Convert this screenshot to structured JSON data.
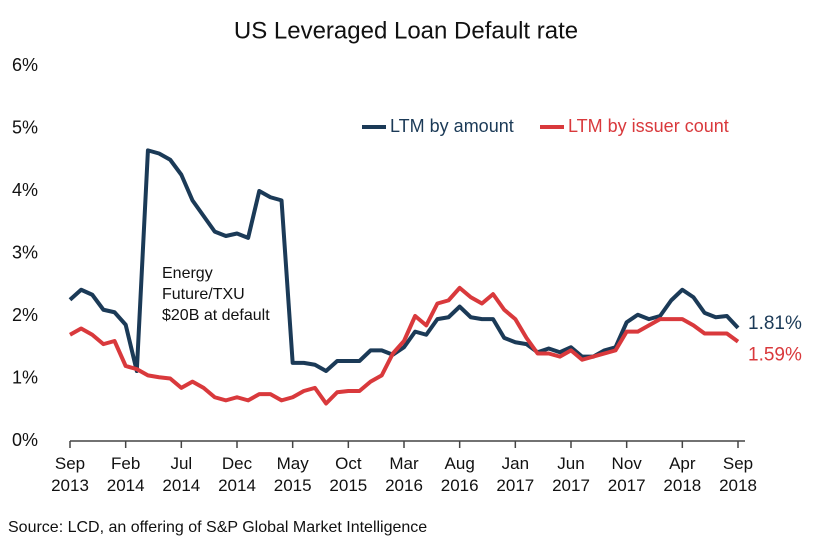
{
  "chart_data": {
    "type": "line",
    "title": "US Leveraged Loan Default rate",
    "source": "Source: LCD, an offering of S&P Global Market Intelligence",
    "annotation": [
      "Energy",
      "Future/TXU",
      "$20B at default"
    ],
    "categories": [
      "Sep 2013",
      null,
      null,
      null,
      null,
      "Feb 2014",
      null,
      null,
      null,
      null,
      "Jul 2014",
      null,
      null,
      null,
      null,
      "Dec 2014",
      null,
      null,
      null,
      null,
      "May 2015",
      null,
      null,
      null,
      null,
      "Oct 2015",
      null,
      null,
      null,
      null,
      "Mar 2016",
      null,
      null,
      null,
      null,
      "Aug 2016",
      null,
      null,
      null,
      null,
      "Jan 2017",
      null,
      null,
      null,
      null,
      "Jun 2017",
      null,
      null,
      null,
      null,
      "Nov 2017",
      null,
      null,
      null,
      null,
      "Apr 2018",
      null,
      null,
      null,
      null,
      "Sep 2018"
    ],
    "ylim": [
      0,
      6
    ],
    "yticks": [
      {
        "value": 0,
        "label": "0%"
      },
      {
        "value": 1,
        "label": "1%"
      },
      {
        "value": 2,
        "label": "2%"
      },
      {
        "value": 3,
        "label": "3%"
      },
      {
        "value": 4,
        "label": "4%"
      },
      {
        "value": 5,
        "label": "5%"
      },
      {
        "value": 6,
        "label": "6%"
      }
    ],
    "legend": "top-right",
    "series": [
      {
        "name": "LTM by amount",
        "color": "#1b3a57",
        "values": [
          2.26,
          2.42,
          2.34,
          2.1,
          2.06,
          1.86,
          1.12,
          4.65,
          4.6,
          4.5,
          4.26,
          3.85,
          3.6,
          3.35,
          3.28,
          3.32,
          3.25,
          4.0,
          3.9,
          3.85,
          1.25,
          1.25,
          1.22,
          1.12,
          1.28,
          1.28,
          1.28,
          1.45,
          1.45,
          1.38,
          1.5,
          1.75,
          1.7,
          1.95,
          1.98,
          2.15,
          1.98,
          1.95,
          1.95,
          1.65,
          1.58,
          1.55,
          1.42,
          1.48,
          1.42,
          1.5,
          1.35,
          1.35,
          1.45,
          1.5,
          1.9,
          2.02,
          1.95,
          2.0,
          2.25,
          2.42,
          2.3,
          2.05,
          1.98,
          2.0,
          1.81
        ],
        "value_labels": [
          null,
          null,
          null,
          null,
          null,
          null,
          null,
          null,
          null,
          null,
          null,
          null,
          null,
          null,
          null,
          null,
          null,
          null,
          null,
          null,
          null,
          null,
          null,
          null,
          null,
          null,
          null,
          null,
          null,
          null,
          null,
          null,
          null,
          null,
          null,
          null,
          null,
          null,
          null,
          null,
          null,
          null,
          null,
          null,
          null,
          null,
          null,
          null,
          null,
          null,
          null,
          null,
          null,
          null,
          null,
          null,
          null,
          null,
          null,
          null,
          "1.81%"
        ]
      },
      {
        "name": "LTM by issuer count",
        "color": "#d9393c",
        "values": [
          1.7,
          1.8,
          1.7,
          1.55,
          1.6,
          1.2,
          1.15,
          1.05,
          1.02,
          1.0,
          0.85,
          0.95,
          0.85,
          0.7,
          0.65,
          0.7,
          0.65,
          0.75,
          0.75,
          0.65,
          0.7,
          0.8,
          0.85,
          0.6,
          0.78,
          0.8,
          0.8,
          0.95,
          1.05,
          1.4,
          1.6,
          2.0,
          1.85,
          2.2,
          2.25,
          2.45,
          2.3,
          2.2,
          2.35,
          2.1,
          1.95,
          1.65,
          1.4,
          1.4,
          1.35,
          1.45,
          1.3,
          1.35,
          1.4,
          1.45,
          1.75,
          1.75,
          1.85,
          1.95,
          1.95,
          1.95,
          1.85,
          1.72,
          1.72,
          1.72,
          1.59
        ],
        "value_labels": [
          null,
          null,
          null,
          null,
          null,
          null,
          null,
          null,
          null,
          null,
          null,
          null,
          null,
          null,
          null,
          null,
          null,
          null,
          null,
          null,
          null,
          null,
          null,
          null,
          null,
          null,
          null,
          null,
          null,
          null,
          null,
          null,
          null,
          null,
          null,
          null,
          null,
          null,
          null,
          null,
          null,
          null,
          null,
          null,
          null,
          null,
          null,
          null,
          null,
          null,
          null,
          null,
          null,
          null,
          null,
          null,
          null,
          null,
          null,
          null,
          "1.59%"
        ]
      }
    ]
  }
}
